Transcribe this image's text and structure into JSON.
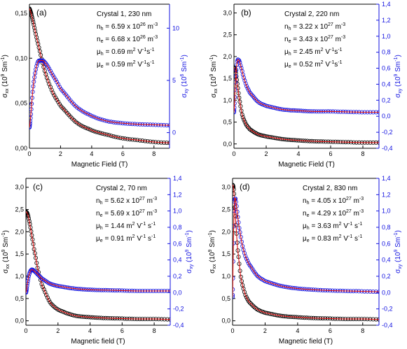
{
  "chart_data": [
    {
      "type": "scatter",
      "panel_label": "(a)",
      "xlabel": "Magnetic Field (T)",
      "ylabel": {
        "sym": "σ",
        "sub": "xx",
        "rest": " (10",
        "exp": "9",
        "unit": " Sm",
        "exp2": "-1",
        "close": ")"
      },
      "y2label": {
        "sym": "σ",
        "sub": "xy",
        "rest": " (10",
        "exp": "6",
        "unit": " Sm",
        "exp2": "-1",
        "close": ")"
      },
      "xlim": [
        0,
        9
      ],
      "ylim": [
        0,
        0.16
      ],
      "y2lim": [
        -1.5,
        12.3
      ],
      "xticks": [
        0,
        2,
        4,
        6,
        8
      ],
      "yticks": [
        0,
        0.05,
        0.1,
        0.15
      ],
      "ytick_labels": [
        "0,00",
        "0,05",
        "0,10",
        "0,15"
      ],
      "y2ticks": [
        0,
        5,
        10
      ],
      "y2tick_labels": [
        "0",
        "5",
        "10"
      ],
      "annotations": [
        {
          "text": "Crystal 1, 230 nm"
        },
        {
          "pre": "n",
          "sub": "h",
          "mid": " = 6.59 x 10",
          "sup": "26",
          "post": " m",
          "sup2": "-3"
        },
        {
          "pre": "n",
          "sub": "e",
          "mid": " = 6.68 x 10",
          "sup": "26",
          "post": " m",
          "sup2": "-3"
        },
        {
          "pre": "μ",
          "sub": "h",
          "mid": " = 0.69 m",
          "sup": "2",
          "post": " V",
          "sup2": "-1",
          "post2": "s",
          "sup3": "-1"
        },
        {
          "pre": "μ",
          "sub": "e",
          "mid": " = 0.59 m",
          "sup": "2",
          "post": " V",
          "sup2": "-1",
          "post2": "s",
          "sup3": "-1"
        }
      ],
      "series": [
        {
          "name": "σxx",
          "axis": "left",
          "x": [
            0,
            0.5,
            1,
            1.5,
            2,
            3,
            4,
            5,
            6,
            7,
            8,
            9
          ],
          "y": [
            0.155,
            0.12,
            0.085,
            0.062,
            0.047,
            0.029,
            0.02,
            0.015,
            0.011,
            0.009,
            0.007,
            0.006
          ]
        },
        {
          "name": "σxy",
          "axis": "right",
          "x": [
            0,
            0.25,
            0.5,
            0.75,
            1,
            1.5,
            2,
            3,
            4,
            5,
            6,
            7,
            8,
            9
          ],
          "y": [
            0.5,
            4.5,
            6.6,
            6.9,
            6.7,
            5.5,
            4.2,
            2.5,
            1.6,
            1.1,
            0.9,
            0.8,
            0.75,
            0.7
          ]
        }
      ]
    },
    {
      "type": "scatter",
      "panel_label": "(b)",
      "xlabel": "Magnetic Field (T)",
      "ylabel": {
        "sym": "σ",
        "sub": "xx",
        "rest": " (10",
        "exp": "9",
        "unit": " Sm",
        "exp2": "-1",
        "close": ")"
      },
      "y2label": {
        "sym": "σ",
        "sub": "xy",
        "rest": " (10",
        "exp": "9",
        "unit": " Sm",
        "exp2": "-1",
        "close": ")"
      },
      "xlim": [
        0,
        9
      ],
      "ylim": [
        -0.1,
        3.2
      ],
      "y2lim": [
        -0.4,
        1.4
      ],
      "xticks": [
        0,
        2,
        4,
        6,
        8
      ],
      "yticks": [
        0,
        0.5,
        1.0,
        1.5,
        2.0,
        2.5,
        3.0
      ],
      "ytick_labels": [
        "0,0",
        "0,5",
        "1,0",
        "1,5",
        "2,0",
        "2,5",
        "3,0"
      ],
      "y2ticks": [
        -0.4,
        -0.2,
        0,
        0.2,
        0.4,
        0.6,
        0.8,
        1.0,
        1.2,
        1.4
      ],
      "y2tick_labels": [
        "-0,4",
        "-0,2",
        "0,0",
        "0,2",
        "0,4",
        "0,6",
        "0,8",
        "1,0",
        "1,2",
        "1,4"
      ],
      "annotations": [
        {
          "text": "Crystal 2, 220 nm"
        },
        {
          "pre": "n",
          "sub": "h",
          "mid": " = 3.22 x 10",
          "sup": "27",
          "post": " m",
          "sup2": "-3"
        },
        {
          "pre": "n",
          "sub": "e",
          "mid": " = 3.43 x 10",
          "sup": "27",
          "post": " m",
          "sup2": "-3"
        },
        {
          "pre": "μ",
          "sub": "h",
          "mid": " = 2.45 m",
          "sup": "2",
          "post": " V",
          "sup2": "-1",
          "post2": "s",
          "sup3": "-1"
        },
        {
          "pre": "μ",
          "sub": "e",
          "mid": " = 0.52 m",
          "sup": "2",
          "post": " V",
          "sup2": "-1",
          "post2": "s",
          "sup3": "-1"
        }
      ],
      "series": [
        {
          "name": "σxx",
          "axis": "left",
          "x": [
            0,
            0.1,
            0.2,
            0.3,
            0.5,
            0.75,
            1,
            1.5,
            2,
            3,
            4,
            5,
            6,
            7,
            8,
            9
          ],
          "y": [
            1.75,
            1.65,
            1.4,
            1.1,
            0.68,
            0.45,
            0.33,
            0.22,
            0.17,
            0.11,
            0.08,
            0.06,
            0.05,
            0.04,
            0.03,
            0.03
          ]
        },
        {
          "name": "σxy",
          "axis": "right",
          "x": [
            0,
            0.1,
            0.2,
            0.3,
            0.4,
            0.6,
            0.8,
            1,
            1.5,
            2,
            3,
            4,
            5,
            6,
            7,
            8,
            9
          ],
          "y": [
            0.05,
            0.45,
            0.68,
            0.7,
            0.64,
            0.49,
            0.37,
            0.29,
            0.18,
            0.13,
            0.085,
            0.07,
            0.06,
            0.06,
            0.055,
            0.05,
            0.05
          ]
        }
      ]
    },
    {
      "type": "scatter",
      "panel_label": "(c)",
      "xlabel": "Magnetic field (T)",
      "ylabel": {
        "sym": "σ",
        "sub": "xx",
        "rest": " (10",
        "exp": "9",
        "unit": " Sm",
        "exp2": "-1",
        "close": ")"
      },
      "y2label": {
        "sym": "σ",
        "sub": "xy",
        "rest": " (10",
        "exp": "9",
        "unit": " Sm",
        "exp2": "-1",
        "close": ")"
      },
      "xlim": [
        0,
        9
      ],
      "ylim": [
        -0.1,
        3.2
      ],
      "y2lim": [
        -0.4,
        1.4
      ],
      "xticks": [
        0,
        2,
        4,
        6,
        8
      ],
      "yticks": [
        0,
        0.5,
        1.0,
        1.5,
        2.0,
        2.5,
        3.0
      ],
      "ytick_labels": [
        "0,0",
        "0,5",
        "1,0",
        "1,5",
        "2,0",
        "2,5",
        "3,0"
      ],
      "y2ticks": [
        -0.4,
        -0.2,
        0,
        0.2,
        0.4,
        0.6,
        0.8,
        1.0,
        1.2,
        1.4
      ],
      "y2tick_labels": [
        "-0,4",
        "-0,2",
        "0,0",
        "0,2",
        "0,4",
        "0,6",
        "0,8",
        "1,0",
        "1,2",
        "1,4"
      ],
      "annotations": [
        {
          "text": "Crystal 2, 70 nm"
        },
        {
          "pre": "n",
          "sub": "h",
          "mid": " = 5.62 x 10",
          "sup": "27",
          "post": " m",
          "sup2": "-3"
        },
        {
          "pre": "n",
          "sub": "e",
          "mid": " = 5.69 x 10",
          "sup": "27",
          "post": " m",
          "sup2": "-3"
        },
        {
          "pre": "μ",
          "sub": "h",
          "mid": " = 1.44 m",
          "sup": "2",
          "post": " V",
          "sup2": "-1",
          "post2": " s",
          "sup3": "-1"
        },
        {
          "pre": "μ",
          "sub": "e",
          "mid": " = 0.91 m",
          "sup": "2",
          "post": " V",
          "sup2": "-1",
          "post2": " s",
          "sup3": "-1"
        }
      ],
      "series": [
        {
          "name": "σxx",
          "axis": "left",
          "x": [
            0,
            0.1,
            0.2,
            0.35,
            0.5,
            0.75,
            1,
            1.5,
            2,
            3,
            4,
            5,
            6,
            7,
            8,
            9
          ],
          "y": [
            2.45,
            2.4,
            2.25,
            1.95,
            1.62,
            1.15,
            0.8,
            0.42,
            0.25,
            0.12,
            0.08,
            0.06,
            0.05,
            0.04,
            0.04,
            0.03
          ]
        },
        {
          "name": "σxy",
          "axis": "right",
          "x": [
            0,
            0.1,
            0.2,
            0.3,
            0.4,
            0.6,
            0.8,
            1,
            1.5,
            2,
            3,
            4,
            5,
            6,
            7,
            8,
            9
          ],
          "y": [
            0.0,
            0.12,
            0.22,
            0.27,
            0.28,
            0.25,
            0.21,
            0.17,
            0.11,
            0.08,
            0.05,
            0.035,
            0.03,
            0.025,
            0.02,
            0.02,
            0.02
          ]
        }
      ]
    },
    {
      "type": "scatter",
      "panel_label": "(d)",
      "xlabel": "Magnetic field (T)",
      "ylabel": {
        "sym": "σ",
        "sub": "xx",
        "rest": " (10",
        "exp": "9",
        "unit": " Sm",
        "exp2": "-1",
        "close": ")"
      },
      "y2label": {
        "sym": "σ",
        "sub": "xy",
        "rest": " (10",
        "exp": "9",
        "unit": " Sm",
        "exp2": "-1",
        "close": ")"
      },
      "xlim": [
        0,
        9
      ],
      "ylim": [
        -0.1,
        3.2
      ],
      "y2lim": [
        -0.4,
        1.4
      ],
      "xticks": [
        0,
        2,
        4,
        6,
        8
      ],
      "yticks": [
        0,
        0.5,
        1.0,
        1.5,
        2.0,
        2.5,
        3.0
      ],
      "ytick_labels": [
        "0,0",
        "0,5",
        "1,0",
        "1,5",
        "2,0",
        "2,5",
        "3,0"
      ],
      "y2ticks": [
        -0.4,
        -0.2,
        0,
        0.2,
        0.4,
        0.6,
        0.8,
        1.0,
        1.2,
        1.4
      ],
      "y2tick_labels": [
        "-0,4",
        "-0,2",
        "0,0",
        "0,2",
        "0,4",
        "0,6",
        "0,8",
        "1,0",
        "1,2",
        "1,4"
      ],
      "annotations": [
        {
          "text": "Crystal 2, 830 nm"
        },
        {
          "pre": "n",
          "sub": "h",
          "mid": " = 4.05 x 10",
          "sup": "27",
          "post": " m",
          "sup2": "-3"
        },
        {
          "pre": "n",
          "sub": "e",
          "mid": " = 4.29 x 10",
          "sup": "27",
          "post": " m",
          "sup2": "-3"
        },
        {
          "pre": "μ",
          "sub": "h",
          "mid": " = 3.63 m",
          "sup": "2",
          "post": " V",
          "sup2": "-1",
          "post2": " s",
          "sup3": "-1"
        },
        {
          "pre": "μ",
          "sub": "e",
          "mid": " = 0.83 m",
          "sup": "2",
          "post": " V",
          "sup2": "-1",
          "post2": " s",
          "sup3": "-1"
        }
      ],
      "series": [
        {
          "name": "σxx",
          "axis": "left",
          "x": [
            0,
            0.05,
            0.1,
            0.2,
            0.3,
            0.5,
            0.75,
            1,
            1.5,
            2,
            3,
            4,
            5,
            6,
            7,
            8,
            9
          ],
          "y": [
            3.05,
            3.0,
            2.8,
            2.2,
            1.65,
            1.0,
            0.62,
            0.43,
            0.26,
            0.18,
            0.11,
            0.08,
            0.06,
            0.05,
            0.04,
            0.04,
            0.03
          ]
        },
        {
          "name": "σxy",
          "axis": "right",
          "x": [
            0,
            0.05,
            0.1,
            0.15,
            0.2,
            0.3,
            0.4,
            0.6,
            0.8,
            1,
            1.5,
            2,
            3,
            4,
            5,
            6,
            7,
            8,
            9
          ],
          "y": [
            -0.05,
            0.6,
            1.05,
            1.15,
            1.12,
            0.96,
            0.8,
            0.58,
            0.44,
            0.35,
            0.21,
            0.14,
            0.08,
            0.05,
            0.035,
            0.025,
            0.02,
            0.015,
            0.01
          ]
        }
      ]
    }
  ]
}
